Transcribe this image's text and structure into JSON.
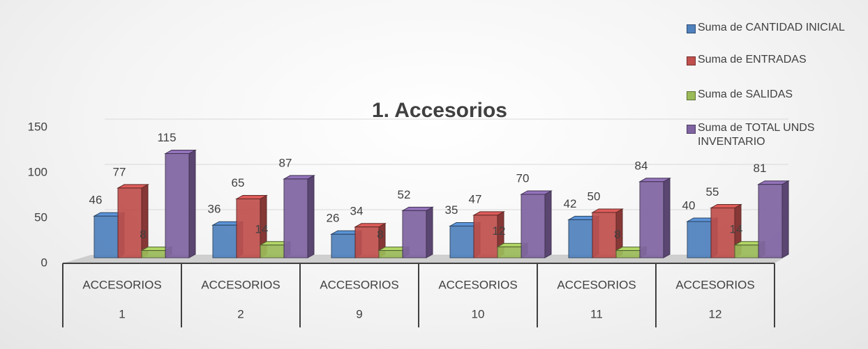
{
  "chart_data": {
    "type": "bar3d",
    "title": "1. Accesorios",
    "categories": [
      [
        "ACCESORIOS",
        "1"
      ],
      [
        "ACCESORIOS",
        "2"
      ],
      [
        "ACCESORIOS",
        "9"
      ],
      [
        "ACCESORIOS",
        "10"
      ],
      [
        "ACCESORIOS",
        "11"
      ],
      [
        "ACCESORIOS",
        "12"
      ]
    ],
    "series": [
      {
        "name": "Suma de CANTIDAD INICIAL",
        "color": "#4f81bd",
        "values": [
          46,
          36,
          26,
          35,
          42,
          40
        ]
      },
      {
        "name": "Suma de ENTRADAS",
        "color": "#c0504d",
        "values": [
          77,
          65,
          34,
          47,
          50,
          55
        ]
      },
      {
        "name": "Suma de SALIDAS",
        "color": "#9bbb59",
        "values": [
          8,
          14,
          8,
          12,
          8,
          14
        ]
      },
      {
        "name": "Suma de TOTAL UNDS INVENTARIO",
        "color": "#8064a2",
        "values": [
          115,
          87,
          52,
          70,
          84,
          81
        ]
      }
    ],
    "ylim": [
      0,
      150
    ],
    "yticks": [
      0,
      50,
      100,
      150
    ],
    "grid": true,
    "legend": "right"
  }
}
